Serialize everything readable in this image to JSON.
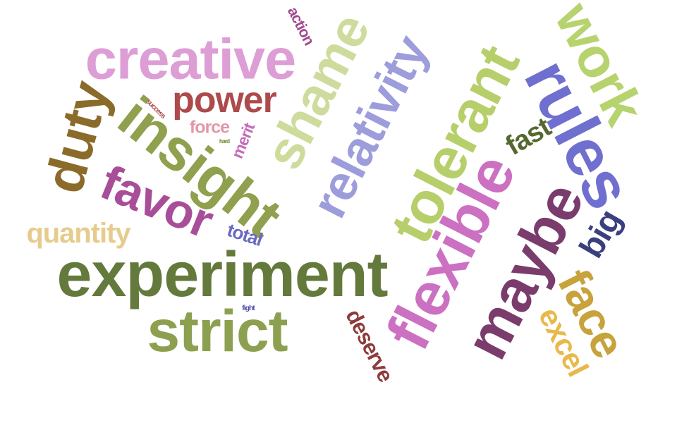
{
  "cloud": {
    "words": [
      {
        "text": "creative",
        "color": "#dd9ed6"
      },
      {
        "text": "experiment",
        "color": "#647a3c"
      },
      {
        "text": "insight",
        "color": "#8fa04e"
      },
      {
        "text": "relativity",
        "color": "#9d9ddc"
      },
      {
        "text": "shame",
        "color": "#cddc9c"
      },
      {
        "text": "flexible",
        "color": "#cc70c2"
      },
      {
        "text": "tolerant",
        "color": "#b6cf6a"
      },
      {
        "text": "maybe",
        "color": "#7a3c6c"
      },
      {
        "text": "strict",
        "color": "#8ca04f"
      },
      {
        "text": "rules",
        "color": "#6f6fd0"
      },
      {
        "text": "work",
        "color": "#b6d36e"
      },
      {
        "text": "duty",
        "color": "#8b6b2a"
      },
      {
        "text": "favor",
        "color": "#a84e98"
      },
      {
        "text": "power",
        "color": "#ad4a4c"
      },
      {
        "text": "face",
        "color": "#c8a23a"
      },
      {
        "text": "quantity",
        "color": "#e6cc8c"
      },
      {
        "text": "excel",
        "color": "#e8b94a"
      },
      {
        "text": "deserve",
        "color": "#8e3b3b"
      },
      {
        "text": "big",
        "color": "#3a3f7e"
      },
      {
        "text": "fast",
        "color": "#55692f"
      },
      {
        "text": "force",
        "color": "#e199a6"
      },
      {
        "text": "merit",
        "color": "#c46cb8"
      },
      {
        "text": "action",
        "color": "#a14a8e"
      },
      {
        "text": "total",
        "color": "#6a6ac2"
      },
      {
        "text": "success",
        "color": "#b05050"
      },
      {
        "text": "hard",
        "color": "#7a8a3a"
      },
      {
        "text": "fight",
        "color": "#4a4aaa"
      }
    ]
  }
}
